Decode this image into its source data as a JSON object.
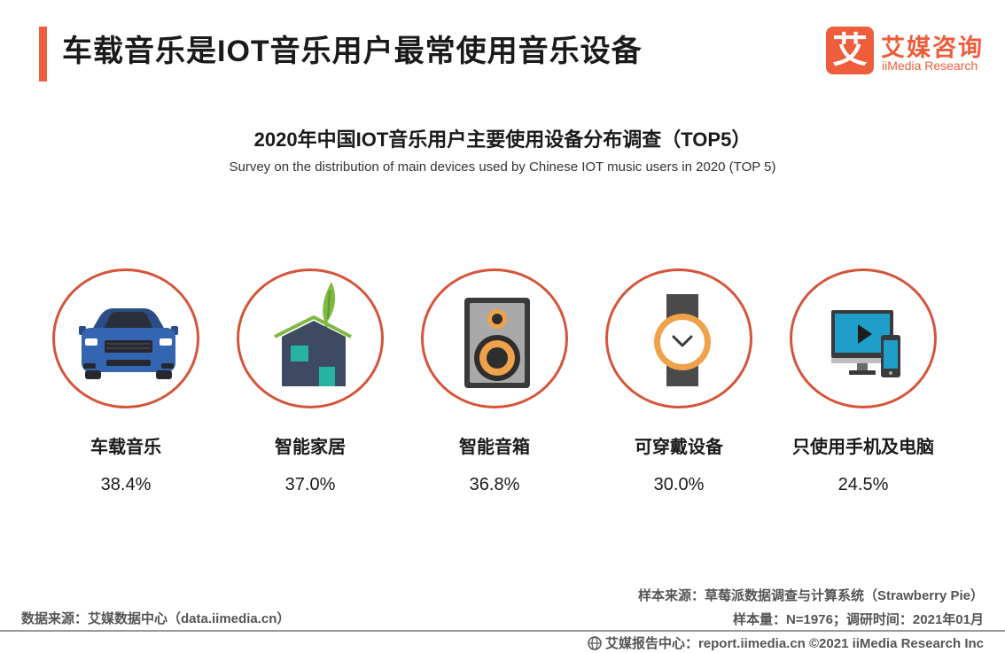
{
  "header": {
    "title": "车载音乐是IOT音乐用户最常使用音乐设备"
  },
  "logo": {
    "mark": "艾",
    "cn": "艾媒咨询",
    "en": "iiMedia Research"
  },
  "chart_data": {
    "type": "table",
    "title": "2020年中国IOT音乐用户主要使用设备分布调查（TOP5）",
    "subtitle": "Survey on the distribution of main devices used by Chinese IOT music users in 2020 (TOP 5)",
    "unit": "%",
    "categories": [
      "车载音乐",
      "智能家居",
      "智能音箱",
      "可穿戴设备",
      "只使用手机及电脑"
    ],
    "values": [
      38.4,
      37.0,
      36.8,
      30.0,
      24.5
    ],
    "value_labels": [
      "38.4%",
      "37.0%",
      "36.8%",
      "30.0%",
      "24.5%"
    ],
    "icons": [
      "car-icon",
      "smart-home-icon",
      "speaker-icon",
      "smartwatch-icon",
      "phone-and-computer-icon"
    ]
  },
  "sources": {
    "data_source": "数据来源：艾媒数据中心（data.iimedia.cn）",
    "sample_source": "样本来源：草莓派数据调查与计算系统（Strawberry  Pie）",
    "sample_info": "样本量：N=1976；调研时间：2021年01月"
  },
  "footer": {
    "text": "艾媒报告中心：report.iimedia.cn ©2021  iiMedia Research  Inc"
  },
  "colors": {
    "accent": "#ee5d3c",
    "circle_border": "#d5553a",
    "orange": "#f0a24a",
    "navy": "#3d4a62"
  }
}
